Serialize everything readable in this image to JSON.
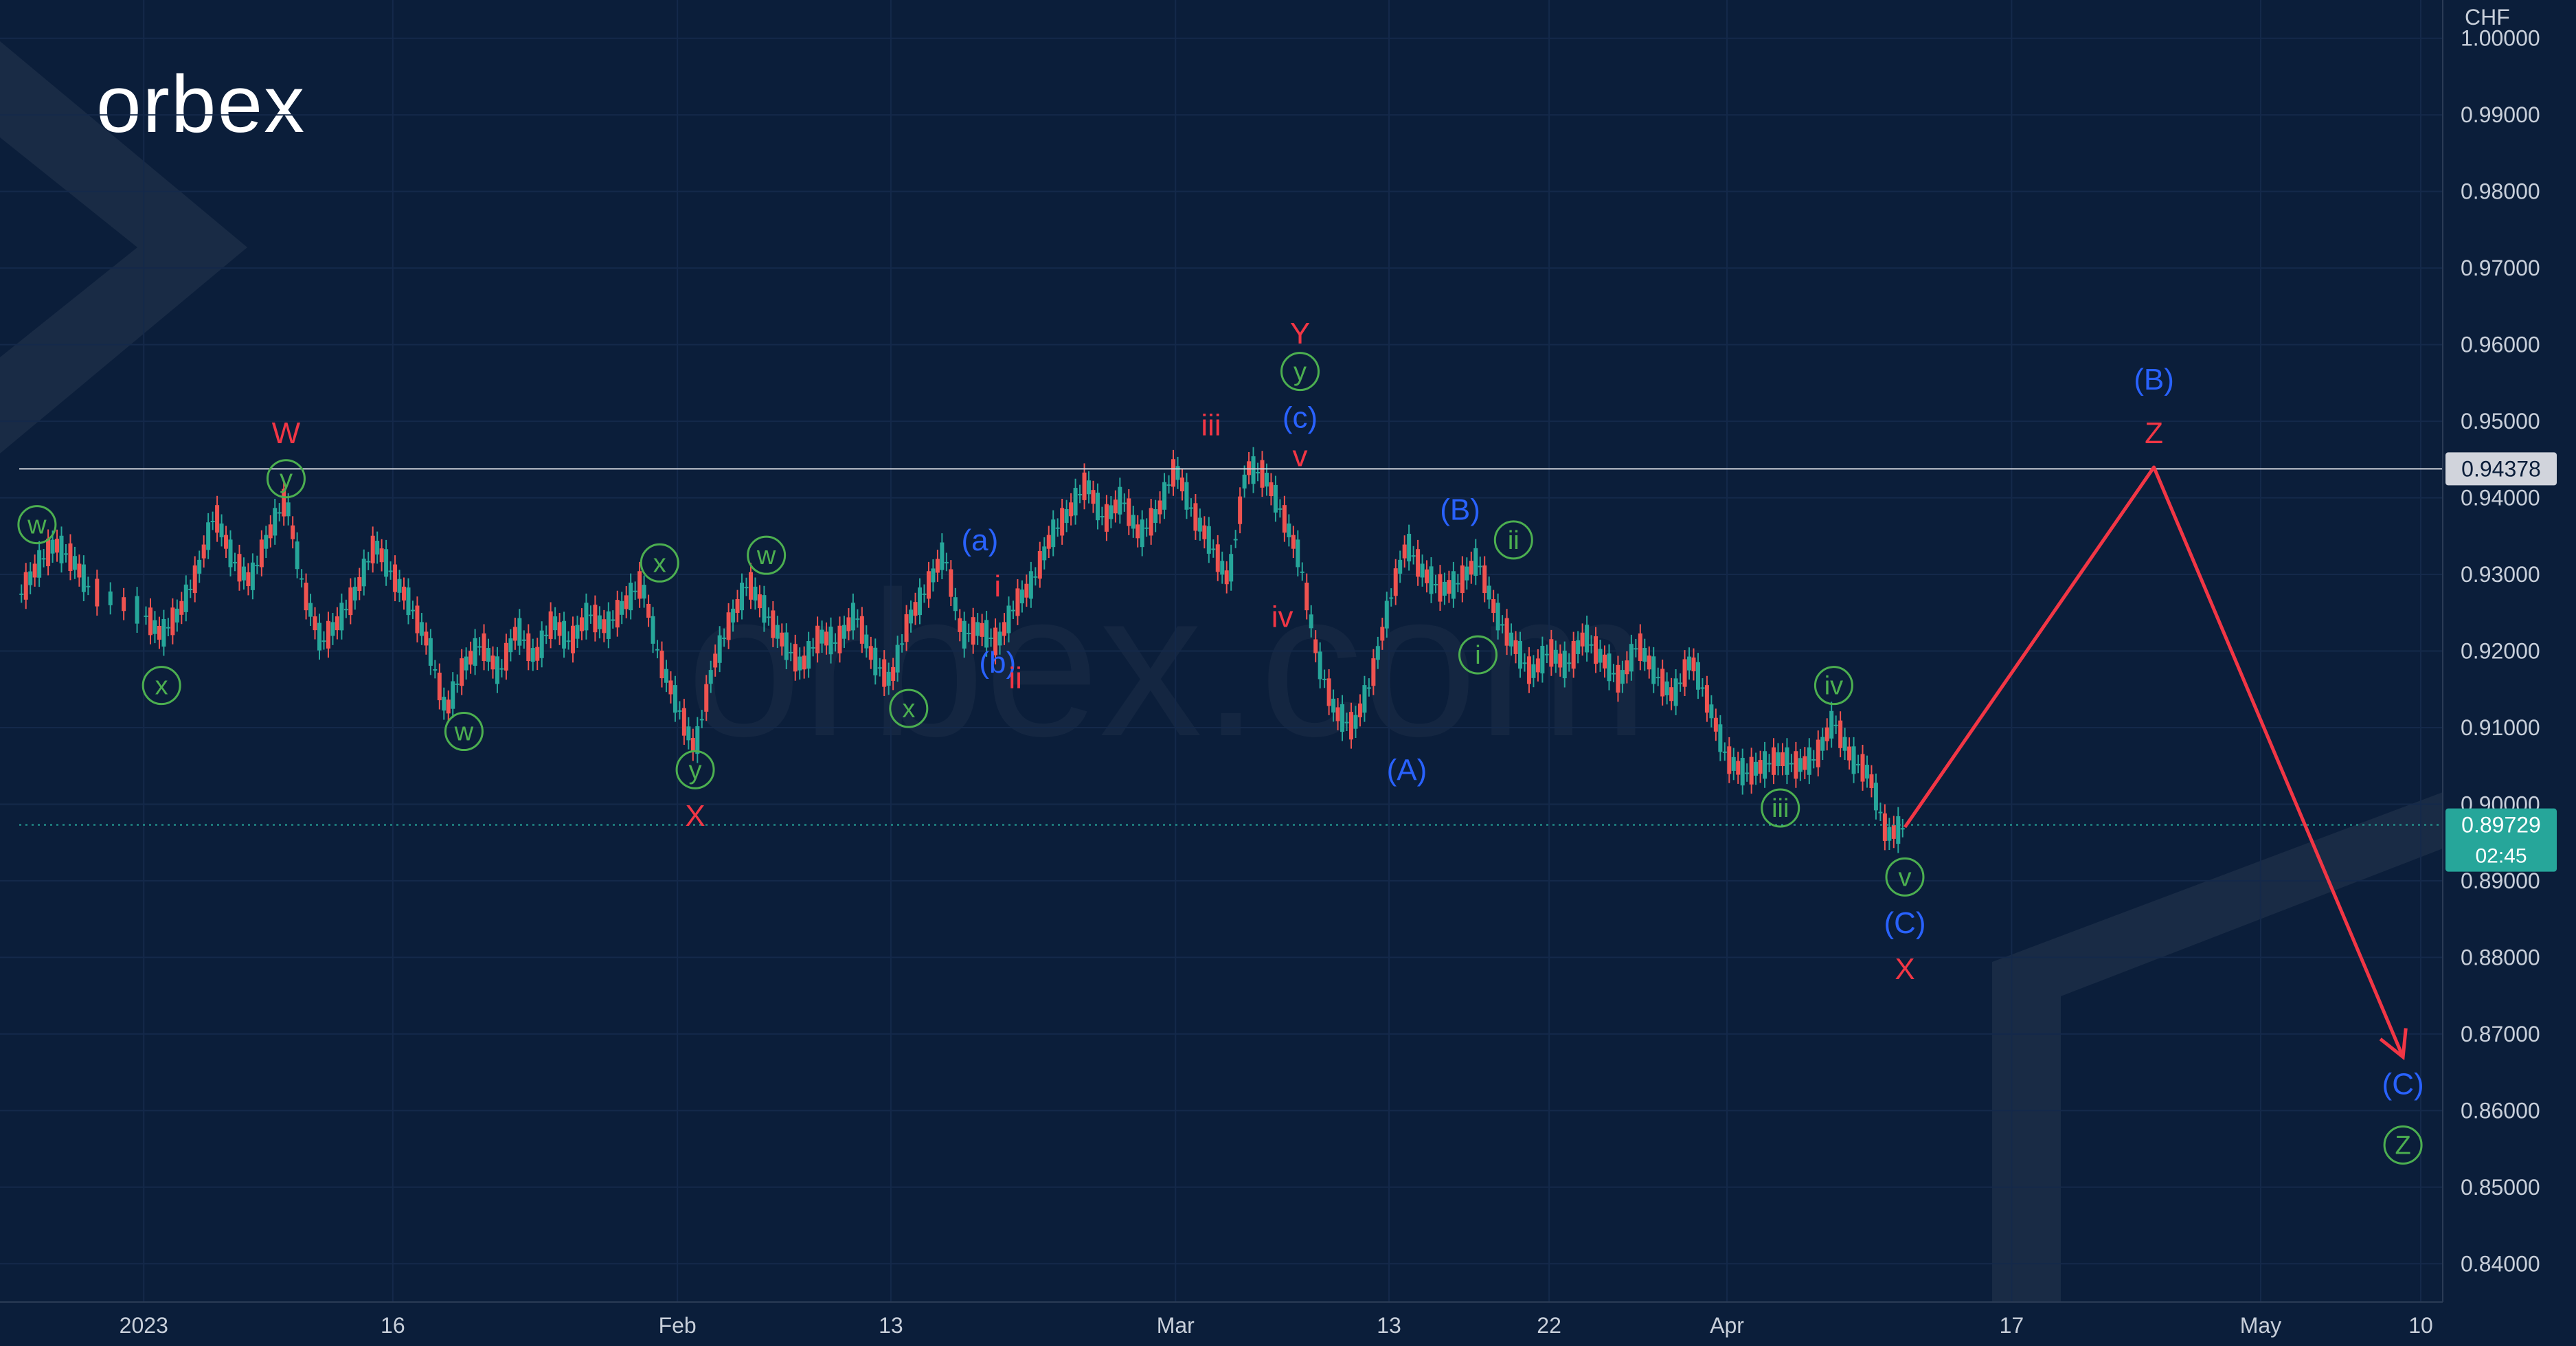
{
  "brand": {
    "logo_text": "orbex",
    "watermark_text": "orbex.com"
  },
  "chart_data": {
    "type": "line",
    "title": "",
    "currency_label": "CHF",
    "ylim": [
      0.835,
      1.005
    ],
    "y_ticks": [
      1.0,
      0.99,
      0.98,
      0.97,
      0.96,
      0.95,
      0.94,
      0.93,
      0.92,
      0.91,
      0.9,
      0.89,
      0.88,
      0.87,
      0.86,
      0.85,
      0.84
    ],
    "y_tick_labels": [
      "1.00000",
      "0.99000",
      "0.98000",
      "0.97000",
      "0.96000",
      "0.95000",
      "0.94000",
      "0.93000",
      "0.92000",
      "0.91000",
      "0.90000",
      "0.89000",
      "0.88000",
      "0.87000",
      "0.86000",
      "0.85000",
      "0.84000"
    ],
    "xlim": [
      "2022-12-26",
      "2023-05-10"
    ],
    "x_ticks": [
      {
        "date": "2023-01-02",
        "label": "2023"
      },
      {
        "date": "2023-01-16",
        "label": "16"
      },
      {
        "date": "2023-02-01",
        "label": "Feb"
      },
      {
        "date": "2023-02-13",
        "label": "13"
      },
      {
        "date": "2023-03-01",
        "label": "Mar"
      },
      {
        "date": "2023-03-13",
        "label": "13"
      },
      {
        "date": "2023-03-22",
        "label": "22"
      },
      {
        "date": "2023-04-01",
        "label": "Apr"
      },
      {
        "date": "2023-04-17",
        "label": "17"
      },
      {
        "date": "2023-05-01",
        "label": "May"
      },
      {
        "date": "2023-05-10",
        "label": "10"
      }
    ],
    "resistance_level": {
      "value": 0.94378,
      "label": "0.94378"
    },
    "current_price": {
      "value": 0.89729,
      "label": "0.89729",
      "countdown": "02:45",
      "color": "#26a69a"
    },
    "price_series": {
      "color": "#26a69a",
      "down_color": "#ef5350",
      "points": [
        [
          "2022-12-26",
          0.927
        ],
        [
          "2022-12-27",
          0.931
        ],
        [
          "2022-12-28",
          0.934
        ],
        [
          "2022-12-29",
          0.932
        ],
        [
          "2022-12-30",
          0.928
        ],
        [
          "2023-01-02",
          0.925
        ],
        [
          "2023-01-03",
          0.922
        ],
        [
          "2023-01-04",
          0.925
        ],
        [
          "2023-01-05",
          0.93
        ],
        [
          "2023-01-06",
          0.938
        ],
        [
          "2023-01-07",
          0.932
        ],
        [
          "2023-01-08",
          0.929
        ],
        [
          "2023-01-09",
          0.935
        ],
        [
          "2023-01-10",
          0.94
        ],
        [
          "2023-01-11",
          0.928
        ],
        [
          "2023-01-12",
          0.921
        ],
        [
          "2023-01-13",
          0.924
        ],
        [
          "2023-01-14",
          0.928
        ],
        [
          "2023-01-15",
          0.934
        ],
        [
          "2023-01-16",
          0.93
        ],
        [
          "2023-01-17",
          0.926
        ],
        [
          "2023-01-18",
          0.921
        ],
        [
          "2023-01-19",
          0.912
        ],
        [
          "2023-01-20",
          0.918
        ],
        [
          "2023-01-21",
          0.921
        ],
        [
          "2023-01-22",
          0.917
        ],
        [
          "2023-01-23",
          0.923
        ],
        [
          "2023-01-24",
          0.919
        ],
        [
          "2023-01-25",
          0.924
        ],
        [
          "2023-01-26",
          0.921
        ],
        [
          "2023-01-27",
          0.925
        ],
        [
          "2023-01-28",
          0.923
        ],
        [
          "2023-01-29",
          0.926
        ],
        [
          "2023-01-30",
          0.929
        ],
        [
          "2023-01-31",
          0.919
        ],
        [
          "2023-02-01",
          0.913
        ],
        [
          "2023-02-02",
          0.907
        ],
        [
          "2023-02-03",
          0.918
        ],
        [
          "2023-02-04",
          0.924
        ],
        [
          "2023-02-05",
          0.929
        ],
        [
          "2023-02-06",
          0.925
        ],
        [
          "2023-02-07",
          0.921
        ],
        [
          "2023-02-08",
          0.918
        ],
        [
          "2023-02-09",
          0.922
        ],
        [
          "2023-02-10",
          0.921
        ],
        [
          "2023-02-11",
          0.925
        ],
        [
          "2023-02-12",
          0.919
        ],
        [
          "2023-02-13",
          0.916
        ],
        [
          "2023-02-14",
          0.924
        ],
        [
          "2023-02-15",
          0.928
        ],
        [
          "2023-02-16",
          0.933
        ],
        [
          "2023-02-17",
          0.922
        ],
        [
          "2023-02-18",
          0.923
        ],
        [
          "2023-02-19",
          0.921
        ],
        [
          "2023-02-20",
          0.926
        ],
        [
          "2023-02-21",
          0.929
        ],
        [
          "2023-02-22",
          0.935
        ],
        [
          "2023-02-23",
          0.938
        ],
        [
          "2023-02-24",
          0.942
        ],
        [
          "2023-02-25",
          0.937
        ],
        [
          "2023-02-26",
          0.94
        ],
        [
          "2023-02-27",
          0.935
        ],
        [
          "2023-02-28",
          0.938
        ],
        [
          "2023-03-01",
          0.944
        ],
        [
          "2023-03-02",
          0.938
        ],
        [
          "2023-03-03",
          0.934
        ],
        [
          "2023-03-04",
          0.929
        ],
        [
          "2023-03-05",
          0.944
        ],
        [
          "2023-03-06",
          0.943
        ],
        [
          "2023-03-07",
          0.938
        ],
        [
          "2023-03-08",
          0.932
        ],
        [
          "2023-03-09",
          0.919
        ],
        [
          "2023-03-10",
          0.912
        ],
        [
          "2023-03-11",
          0.91
        ],
        [
          "2023-03-12",
          0.916
        ],
        [
          "2023-03-13",
          0.926
        ],
        [
          "2023-03-14",
          0.934
        ],
        [
          "2023-03-15",
          0.93
        ],
        [
          "2023-03-16",
          0.928
        ],
        [
          "2023-03-17",
          0.929
        ],
        [
          "2023-03-18",
          0.932
        ],
        [
          "2023-03-19",
          0.925
        ],
        [
          "2023-03-20",
          0.921
        ],
        [
          "2023-03-21",
          0.917
        ],
        [
          "2023-03-22",
          0.92
        ],
        [
          "2023-03-23",
          0.918
        ],
        [
          "2023-03-24",
          0.922
        ],
        [
          "2023-03-25",
          0.919
        ],
        [
          "2023-03-26",
          0.916
        ],
        [
          "2023-03-27",
          0.921
        ],
        [
          "2023-03-28",
          0.917
        ],
        [
          "2023-03-29",
          0.914
        ],
        [
          "2023-03-30",
          0.919
        ],
        [
          "2023-03-31",
          0.913
        ],
        [
          "2023-04-01",
          0.906
        ],
        [
          "2023-04-02",
          0.904
        ],
        [
          "2023-04-03",
          0.905
        ],
        [
          "2023-04-04",
          0.906
        ],
        [
          "2023-04-05",
          0.905
        ],
        [
          "2023-04-06",
          0.906
        ],
        [
          "2023-04-07",
          0.911
        ],
        [
          "2023-04-08",
          0.906
        ],
        [
          "2023-04-09",
          0.904
        ],
        [
          "2023-04-10",
          0.896
        ],
        [
          "2023-04-11",
          0.897
        ]
      ]
    },
    "projection": {
      "color": "#f23645",
      "points": [
        [
          "2023-04-11",
          0.897
        ],
        [
          "2023-04-25",
          0.944
        ],
        [
          "2023-05-09",
          0.867
        ]
      ]
    },
    "wave_labels": [
      {
        "text": "w",
        "date": "2022-12-27",
        "y": 0.9365,
        "color": "#4caf50",
        "circled": true
      },
      {
        "text": "x",
        "date": "2023-01-03",
        "y": 0.9155,
        "color": "#4caf50",
        "circled": true
      },
      {
        "text": "y",
        "date": "2023-01-10",
        "y": 0.9425,
        "color": "#4caf50",
        "circled": true
      },
      {
        "text": "W",
        "date": "2023-01-10",
        "y": 0.9485,
        "color": "#f23645",
        "circled": false
      },
      {
        "text": "w",
        "date": "2023-01-20",
        "y": 0.9095,
        "color": "#4caf50",
        "circled": true
      },
      {
        "text": "x",
        "date": "2023-01-31",
        "y": 0.9315,
        "color": "#4caf50",
        "circled": true
      },
      {
        "text": "y",
        "date": "2023-02-02",
        "y": 0.9045,
        "color": "#4caf50",
        "circled": true
      },
      {
        "text": "X",
        "date": "2023-02-02",
        "y": 0.8985,
        "color": "#f23645",
        "circled": false
      },
      {
        "text": "w",
        "date": "2023-02-06",
        "y": 0.9325,
        "color": "#4caf50",
        "circled": true
      },
      {
        "text": "x",
        "date": "2023-02-14",
        "y": 0.9125,
        "color": "#4caf50",
        "circled": true
      },
      {
        "text": "(a)",
        "date": "2023-02-18",
        "y": 0.9345,
        "color": "#2962ff",
        "circled": false
      },
      {
        "text": "i",
        "date": "2023-02-19",
        "y": 0.9285,
        "color": "#f23645",
        "circled": false
      },
      {
        "text": "(b)",
        "date": "2023-02-19",
        "y": 0.9185,
        "color": "#2962ff",
        "circled": false
      },
      {
        "text": "ii",
        "date": "2023-02-20",
        "y": 0.9165,
        "color": "#f23645",
        "circled": false
      },
      {
        "text": "iii",
        "date": "2023-03-03",
        "y": 0.9495,
        "color": "#f23645",
        "circled": false
      },
      {
        "text": "iv",
        "date": "2023-03-07",
        "y": 0.9245,
        "color": "#f23645",
        "circled": false
      },
      {
        "text": "v",
        "date": "2023-03-08",
        "y": 0.9455,
        "color": "#f23645",
        "circled": false
      },
      {
        "text": "(c)",
        "date": "2023-03-08",
        "y": 0.9505,
        "color": "#2962ff",
        "circled": false
      },
      {
        "text": "y",
        "date": "2023-03-08",
        "y": 0.9565,
        "color": "#4caf50",
        "circled": true
      },
      {
        "text": "Y",
        "date": "2023-03-08",
        "y": 0.9615,
        "color": "#f23645",
        "circled": false
      },
      {
        "text": "(A)",
        "date": "2023-03-14",
        "y": 0.9045,
        "color": "#2962ff",
        "circled": false
      },
      {
        "text": "(B)",
        "date": "2023-03-17",
        "y": 0.9385,
        "color": "#2962ff",
        "circled": false
      },
      {
        "text": "i",
        "date": "2023-03-18",
        "y": 0.9195,
        "color": "#4caf50",
        "circled": true
      },
      {
        "text": "ii",
        "date": "2023-03-20",
        "y": 0.9345,
        "color": "#4caf50",
        "circled": true
      },
      {
        "text": "iii",
        "date": "2023-04-04",
        "y": 0.8995,
        "color": "#4caf50",
        "circled": true
      },
      {
        "text": "iv",
        "date": "2023-04-07",
        "y": 0.9155,
        "color": "#4caf50",
        "circled": true
      },
      {
        "text": "v",
        "date": "2023-04-11",
        "y": 0.8905,
        "color": "#4caf50",
        "circled": true
      },
      {
        "text": "(C)",
        "date": "2023-04-11",
        "y": 0.8845,
        "color": "#2962ff",
        "circled": false
      },
      {
        "text": "X",
        "date": "2023-04-11",
        "y": 0.8785,
        "color": "#f23645",
        "circled": false
      },
      {
        "text": "(B)",
        "date": "2023-04-25",
        "y": 0.9555,
        "color": "#2962ff",
        "circled": false
      },
      {
        "text": "Z",
        "date": "2023-04-25",
        "y": 0.9485,
        "color": "#f23645",
        "circled": false
      },
      {
        "text": "(C)",
        "date": "2023-05-09",
        "y": 0.8635,
        "color": "#2962ff",
        "circled": false
      },
      {
        "text": "Z",
        "date": "2023-05-09",
        "y": 0.8555,
        "color": "#4caf50",
        "circled": true
      }
    ]
  }
}
